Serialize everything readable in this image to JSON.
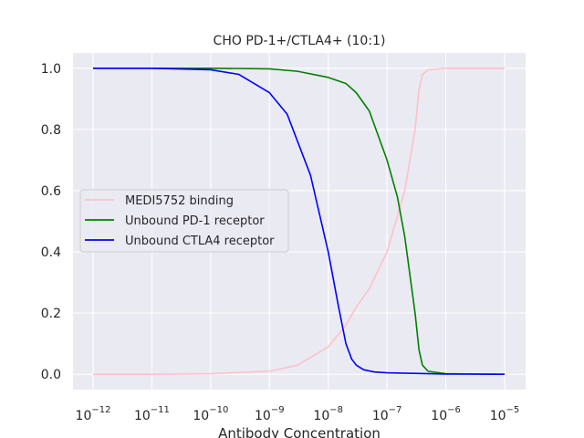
{
  "chart_data": {
    "type": "line",
    "title": "CHO PD-1+/CTLA4+ (10:1)",
    "xlabel": "Antibody Concentration",
    "ylabel": "",
    "xscale": "log",
    "xlim": [
      "1e-12",
      "1e-5"
    ],
    "ylim": [
      -0.05,
      1.05
    ],
    "x_ticks": [
      {
        "base": "10",
        "exp": "−12",
        "value": -12
      },
      {
        "base": "10",
        "exp": "−11",
        "value": -11
      },
      {
        "base": "10",
        "exp": "−10",
        "value": -10
      },
      {
        "base": "10",
        "exp": "−9",
        "value": -9
      },
      {
        "base": "10",
        "exp": "−8",
        "value": -8
      },
      {
        "base": "10",
        "exp": "−7",
        "value": -7
      },
      {
        "base": "10",
        "exp": "−6",
        "value": -6
      },
      {
        "base": "10",
        "exp": "−5",
        "value": -5
      }
    ],
    "y_ticks": [
      "0.0",
      "0.2",
      "0.4",
      "0.6",
      "0.8",
      "1.0"
    ],
    "grid": true,
    "legend_position": "center-left",
    "series": [
      {
        "name": "MEDI5752 binding",
        "color": "#ffc0cb",
        "x": [
          "1e-12",
          "1e-11",
          "1e-10",
          "1e-9",
          "3e-9",
          "1e-8",
          "2e-8",
          "3e-8",
          "5e-8",
          "1e-7",
          "2e-7",
          "3e-7",
          "3.5e-7",
          "4e-7",
          "5e-7",
          "1e-6",
          "1e-5"
        ],
        "y": [
          0.0,
          0.0,
          0.002,
          0.01,
          0.03,
          0.09,
          0.16,
          0.22,
          0.28,
          0.4,
          0.6,
          0.8,
          0.93,
          0.98,
          0.995,
          1.0,
          1.0
        ]
      },
      {
        "name": "Unbound PD-1 receptor",
        "color": "#008000",
        "x": [
          "1e-12",
          "1e-10",
          "1e-9",
          "3e-9",
          "1e-8",
          "2e-8",
          "3e-8",
          "5e-8",
          "1e-7",
          "1.5e-7",
          "2e-7",
          "3e-7",
          "3.5e-7",
          "4e-7",
          "5e-7",
          "1e-6",
          "1e-5"
        ],
        "y": [
          1.0,
          1.0,
          0.998,
          0.99,
          0.97,
          0.95,
          0.92,
          0.86,
          0.7,
          0.58,
          0.45,
          0.2,
          0.08,
          0.03,
          0.01,
          0.002,
          0.0
        ]
      },
      {
        "name": "Unbound CTLA4 receptor",
        "color": "#0000ff",
        "x": [
          "1e-12",
          "1e-11",
          "1e-10",
          "3e-10",
          "1e-9",
          "2e-9",
          "5e-9",
          "1e-8",
          "1.5e-8",
          "2e-8",
          "2.5e-8",
          "3e-8",
          "4e-8",
          "6e-8",
          "1e-7",
          "1e-6",
          "1e-5"
        ],
        "y": [
          1.0,
          1.0,
          0.995,
          0.98,
          0.92,
          0.85,
          0.65,
          0.4,
          0.22,
          0.1,
          0.05,
          0.03,
          0.015,
          0.008,
          0.005,
          0.001,
          0.0
        ]
      }
    ]
  }
}
